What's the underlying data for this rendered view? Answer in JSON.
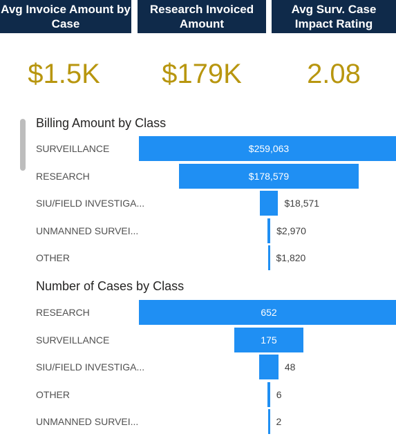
{
  "kpis": [
    {
      "title": "Avg Invoice Amount by Case",
      "value": "$1.5K"
    },
    {
      "title": "Research Invoiced Amount",
      "value": "$179K"
    },
    {
      "title": "Avg Surv. Case Impact Rating",
      "value": "2.08"
    }
  ],
  "colors": {
    "header_bg": "#0f2a4a",
    "kpi_value": "#b8960f",
    "bar": "#1f8ff3"
  },
  "billing": {
    "title": "Billing Amount by Class",
    "rows": [
      {
        "label": "SURVEILLANCE",
        "value_text": "$259,063"
      },
      {
        "label": "RESEARCH",
        "value_text": "$178,579"
      },
      {
        "label": "SIU/FIELD INVESTIGA...",
        "value_text": "$18,571"
      },
      {
        "label": "UNMANNED SURVEI...",
        "value_text": "$2,970"
      },
      {
        "label": "OTHER",
        "value_text": "$1,820"
      }
    ]
  },
  "cases": {
    "title": "Number of Cases by Class",
    "rows": [
      {
        "label": "RESEARCH",
        "value_text": "652"
      },
      {
        "label": "SURVEILLANCE",
        "value_text": "175"
      },
      {
        "label": "SIU/FIELD INVESTIGA...",
        "value_text": "48"
      },
      {
        "label": "OTHER",
        "value_text": "6"
      },
      {
        "label": "UNMANNED SURVEI...",
        "value_text": "2"
      }
    ]
  },
  "chart_data": [
    {
      "type": "bar",
      "title": "Billing Amount by Class",
      "categories": [
        "SURVEILLANCE",
        "RESEARCH",
        "SIU/FIELD INVESTIGA...",
        "UNMANNED SURVEI...",
        "OTHER"
      ],
      "values": [
        259063,
        178579,
        18571,
        2970,
        1820
      ]
    },
    {
      "type": "bar",
      "title": "Number of Cases by Class",
      "categories": [
        "RESEARCH",
        "SURVEILLANCE",
        "SIU/FIELD INVESTIGA...",
        "OTHER",
        "UNMANNED SURVEI..."
      ],
      "values": [
        652,
        175,
        48,
        6,
        2
      ]
    }
  ]
}
